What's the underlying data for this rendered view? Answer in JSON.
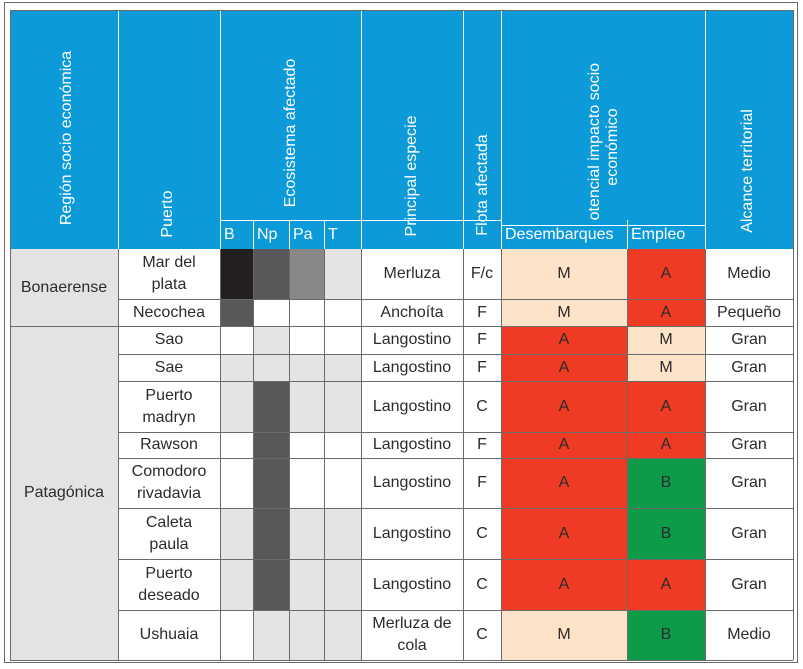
{
  "headers": {
    "region": "Región socio económica",
    "puerto": "Puerto",
    "ecosistema": "Ecosistema afectado",
    "eco_sub": [
      "B",
      "Np",
      "Pa",
      "T"
    ],
    "especie": "Principal especie",
    "flota": "Flota afectada",
    "impacto": [
      "Potencial impacto socio",
      "económico"
    ],
    "impacto_sub": [
      "Desembarques",
      "Empleo"
    ],
    "alcance": "Alcance territorial"
  },
  "regions": [
    "Bonaerense",
    "Patagónica"
  ],
  "rows": [
    {
      "puerto": [
        "Mar del",
        "plata"
      ],
      "especie": [
        "Merluza"
      ],
      "flota": "F/c",
      "desembarques": "M",
      "empleo": "A",
      "alcance": "Medio",
      "eco": [
        "vd",
        "dk",
        "md",
        "gray"
      ]
    },
    {
      "puerto": [
        "Necochea"
      ],
      "especie": [
        "Anchoíta"
      ],
      "flota": "F",
      "desembarques": "M",
      "empleo": "A",
      "alcance": "Pequeño",
      "eco": [
        "dk",
        "white",
        "white",
        "white"
      ]
    },
    {
      "puerto": [
        "Sao"
      ],
      "especie": [
        "Langostino"
      ],
      "flota": "F",
      "desembarques": "A",
      "empleo": "M",
      "alcance": "Gran",
      "eco": [
        "white",
        "gray",
        "white",
        "white"
      ]
    },
    {
      "puerto": [
        "Sae"
      ],
      "especie": [
        "Langostino"
      ],
      "flota": "F",
      "desembarques": "A",
      "empleo": "M",
      "alcance": "Gran",
      "eco": [
        "gray",
        "gray",
        "gray",
        "gray"
      ]
    },
    {
      "puerto": [
        "Puerto",
        "madryn"
      ],
      "especie": [
        "Langostino"
      ],
      "flota": "C",
      "desembarques": "A",
      "empleo": "A",
      "alcance": "Gran",
      "eco": [
        "gray",
        "dk",
        "gray",
        "gray"
      ]
    },
    {
      "puerto": [
        "Rawson"
      ],
      "especie": [
        "Langostino"
      ],
      "flota": "F",
      "desembarques": "A",
      "empleo": "A",
      "alcance": "Gran",
      "eco": [
        "white",
        "dk",
        "white",
        "white"
      ]
    },
    {
      "puerto": [
        "Comodoro",
        "rivadavia"
      ],
      "especie": [
        "Langostino"
      ],
      "flota": "F",
      "desembarques": "A",
      "empleo": "B",
      "alcance": "Gran",
      "eco": [
        "white",
        "dk",
        "white",
        "white"
      ]
    },
    {
      "puerto": [
        "Caleta",
        "paula"
      ],
      "especie": [
        "Langostino"
      ],
      "flota": "C",
      "desembarques": "A",
      "empleo": "B",
      "alcance": "Gran",
      "eco": [
        "gray",
        "dk",
        "gray",
        "gray"
      ]
    },
    {
      "puerto": [
        "Puerto",
        "deseado"
      ],
      "especie": [
        "Langostino"
      ],
      "flota": "C",
      "desembarques": "A",
      "empleo": "A",
      "alcance": "Gran",
      "eco": [
        "gray",
        "dk",
        "gray",
        "gray"
      ]
    },
    {
      "puerto": [
        "Ushuaia"
      ],
      "especie": [
        "Merluza de",
        "cola"
      ],
      "flota": "C",
      "desembarques": "M",
      "empleo": "B",
      "alcance": "Medio",
      "eco": [
        "white",
        "gray",
        "gray",
        "gray"
      ]
    }
  ],
  "colors": {
    "header_blue": "#0c9ad8",
    "alto_red": "#ef3b24",
    "medio_peach": "#fde4c8",
    "bajo_green": "#0e9b48",
    "very_dark": "#231f20",
    "dark_gray": "#58585a",
    "mid_gray": "#888889",
    "light_gray": "#e4e4e4"
  }
}
